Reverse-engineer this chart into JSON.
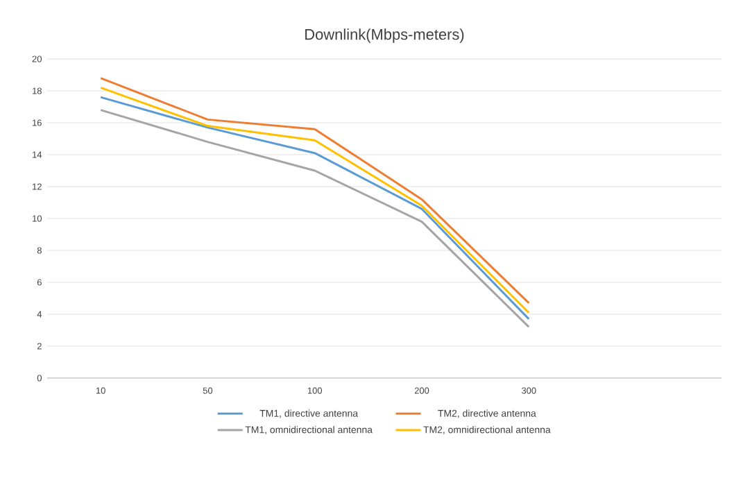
{
  "chart_data": {
    "type": "line",
    "title": "Downlink(Mbps-meters)",
    "categories": [
      "10",
      "50",
      "100",
      "200",
      "300"
    ],
    "series": [
      {
        "name": "TM1, directive antenna",
        "color": "#5b9bd5",
        "values": [
          17.6,
          15.7,
          14.1,
          10.6,
          3.7
        ]
      },
      {
        "name": "TM2, directive antenna",
        "color": "#ed7d31",
        "values": [
          18.8,
          16.2,
          15.6,
          11.2,
          4.7
        ]
      },
      {
        "name": "TM1, omnidirectional antenna",
        "color": "#a5a5a5",
        "values": [
          16.8,
          14.8,
          13.0,
          9.8,
          3.2
        ]
      },
      {
        "name": "TM2, omnidirectional antenna",
        "color": "#ffc000",
        "values": [
          18.2,
          15.8,
          14.9,
          10.8,
          4.1
        ]
      }
    ],
    "ylim": [
      0,
      20
    ],
    "yticks": [
      0,
      2,
      4,
      6,
      8,
      10,
      12,
      14,
      16,
      18,
      20
    ],
    "grid": "y",
    "legend": "bottom",
    "marker": "none",
    "line_style": "solid"
  }
}
